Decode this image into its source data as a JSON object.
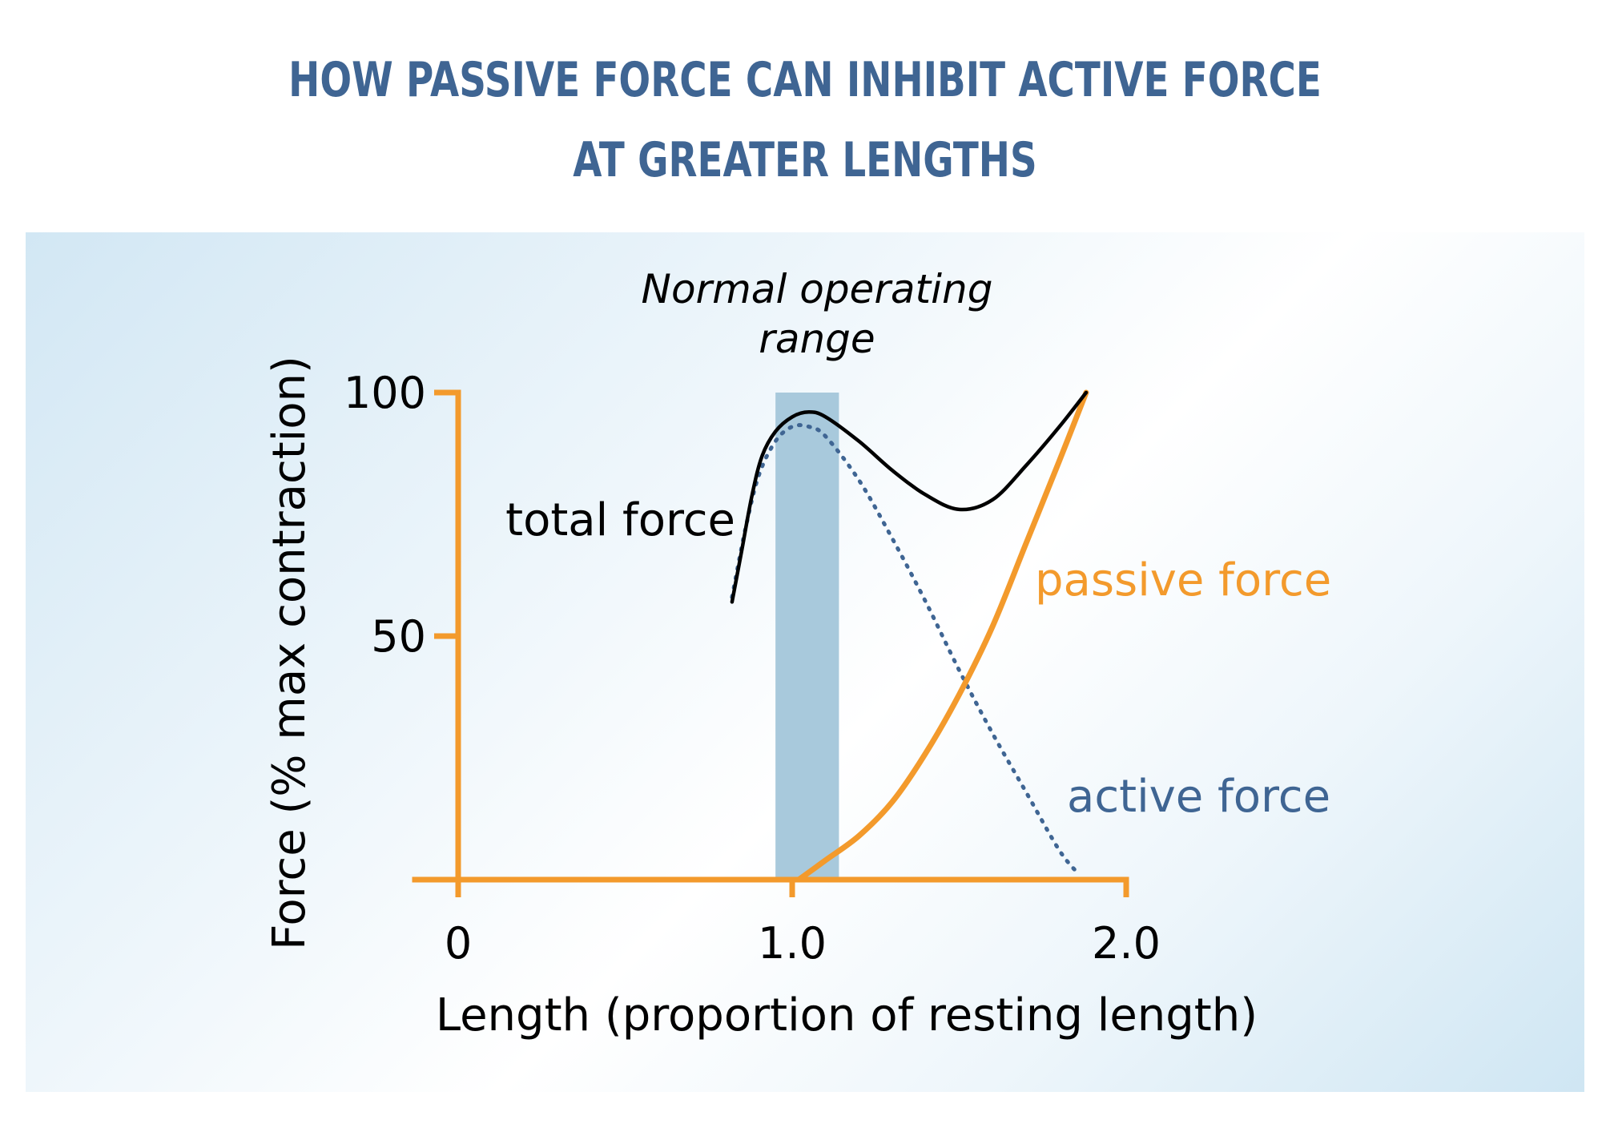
{
  "title": {
    "line1": "HOW PASSIVE FORCE CAN INHIBIT ACTIVE FORCE",
    "line2": "AT GREATER LENGTHS"
  },
  "colors": {
    "title": "#3f6593",
    "axis": "#f39a2c",
    "passive": "#f39a2c",
    "active": "#3f6593",
    "total": "#000000",
    "range_band": "#a8c9dc"
  },
  "chart_data": {
    "type": "line",
    "xlabel": "Length (proportion of resting length)",
    "ylabel": "Force (% max contraction)",
    "xlim": [
      0,
      2.0
    ],
    "ylim": [
      0,
      100
    ],
    "x_ticks": [
      {
        "value": 0,
        "label": "0"
      },
      {
        "value": 1.0,
        "label": "1.0"
      },
      {
        "value": 2.0,
        "label": "2.0"
      }
    ],
    "y_ticks": [
      {
        "value": 50,
        "label": "50"
      },
      {
        "value": 100,
        "label": "100"
      }
    ],
    "range_band": {
      "x_start": 0.95,
      "x_end": 1.14,
      "label_line1": "Normal operating",
      "label_line2": "range"
    },
    "series": [
      {
        "name": "total force",
        "style": "solid",
        "x": [
          0.82,
          0.85,
          0.88,
          0.91,
          0.95,
          1.0,
          1.05,
          1.1,
          1.2,
          1.3,
          1.4,
          1.5,
          1.6,
          1.7,
          1.8,
          1.88
        ],
        "y": [
          57,
          68,
          79,
          87,
          92,
          95,
          96,
          95,
          90,
          84,
          79,
          76,
          78,
          85,
          93,
          100
        ]
      },
      {
        "name": "active force",
        "style": "dotted",
        "x": [
          0.82,
          0.86,
          0.9,
          0.95,
          1.0,
          1.05,
          1.1,
          1.2,
          1.3,
          1.4,
          1.5,
          1.6,
          1.7,
          1.8,
          1.86
        ],
        "y": [
          58,
          72,
          83,
          90,
          93,
          93,
          91,
          82,
          70,
          57,
          43,
          30,
          18,
          6,
          1
        ]
      },
      {
        "name": "passive force",
        "style": "solid",
        "x": [
          1.02,
          1.1,
          1.2,
          1.3,
          1.4,
          1.5,
          1.6,
          1.7,
          1.8,
          1.88
        ],
        "y": [
          0,
          4,
          9,
          16,
          26,
          38,
          52,
          69,
          86,
          100
        ]
      }
    ],
    "legend_placement": "inline labels"
  }
}
